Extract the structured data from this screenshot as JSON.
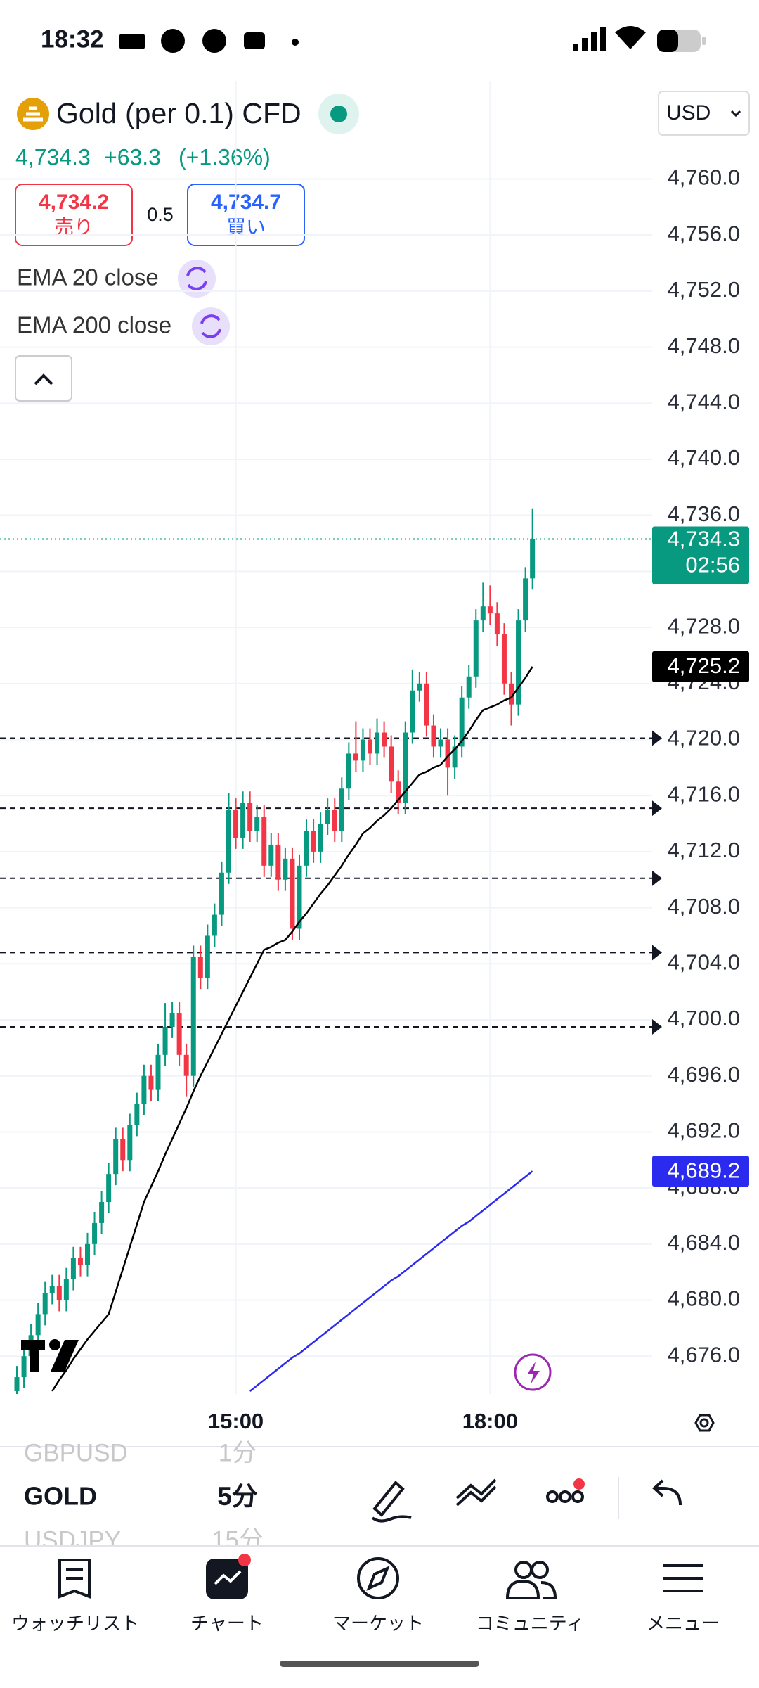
{
  "status_bar": {
    "time": "18:32"
  },
  "header": {
    "title": "Gold (per 0.1) CFD",
    "price": "4,734.3",
    "change": "+63.3",
    "change_pct": "(+1.36%)",
    "sell_price": "4,734.2",
    "sell_label": "売り",
    "spread": "0.5",
    "buy_price": "4,734.7",
    "buy_label": "買い",
    "currency": "USD"
  },
  "chart_data": {
    "type": "candlestick",
    "x": [
      "12:25",
      "12:30",
      "12:35",
      "12:40",
      "12:45",
      "12:50",
      "12:55",
      "13:00",
      "13:05",
      "13:10",
      "13:15",
      "13:20",
      "13:25",
      "13:30",
      "13:35",
      "13:40",
      "13:45",
      "13:50",
      "13:55",
      "14:00",
      "14:05",
      "14:10",
      "14:15",
      "14:20",
      "14:25",
      "14:30",
      "14:35",
      "14:40",
      "14:45",
      "14:50",
      "14:55",
      "15:00",
      "15:05",
      "15:10",
      "15:15",
      "15:20",
      "15:25",
      "15:30",
      "15:35",
      "15:40",
      "15:45",
      "15:50",
      "15:55",
      "16:00",
      "16:05",
      "16:10",
      "16:15",
      "16:20",
      "16:25",
      "16:30",
      "16:35",
      "16:40",
      "16:45",
      "16:50",
      "16:55",
      "17:00",
      "17:05",
      "17:10",
      "17:15",
      "17:20",
      "17:25",
      "17:30",
      "17:35",
      "17:40",
      "17:45",
      "17:50",
      "17:55",
      "18:00",
      "18:05",
      "18:10",
      "18:15",
      "18:20",
      "18:25",
      "18:30"
    ],
    "open": [
      4673.5,
      4674.5,
      4676.0,
      4677.5,
      4679.0,
      4680.5,
      4681.0,
      4680.0,
      4681.5,
      4683.0,
      4682.5,
      4684.0,
      4685.5,
      4687.0,
      4689.0,
      4691.5,
      4690.0,
      4692.5,
      4694.0,
      4696.0,
      4695.0,
      4697.5,
      4699.5,
      4700.5,
      4697.5,
      4696.0,
      4704.5,
      4703.0,
      4706.0,
      4707.5,
      4710.5,
      4715.0,
      4713.0,
      4715.5,
      4713.5,
      4714.5,
      4711.0,
      4712.5,
      4710.0,
      4711.5,
      4706.5,
      4711.0,
      4713.5,
      4712.0,
      4714.0,
      4715.0,
      4713.5,
      4716.5,
      4719.0,
      4718.5,
      4720.0,
      4719.0,
      4720.5,
      4719.5,
      4717.0,
      4715.5,
      4720.5,
      4723.5,
      4724.0,
      4721.0,
      4719.5,
      4720.0,
      4718.0,
      4719.5,
      4723.0,
      4724.5,
      4728.5,
      4729.5,
      4729.0,
      4727.5,
      4724.0,
      4722.5,
      4728.5,
      4731.5
    ],
    "high": [
      4675.3,
      4676.8,
      4678.3,
      4679.8,
      4681.3,
      4681.8,
      4681.8,
      4682.3,
      4683.8,
      4683.8,
      4684.8,
      4686.3,
      4687.8,
      4689.8,
      4692.3,
      4692.3,
      4693.3,
      4694.8,
      4696.8,
      4696.8,
      4698.3,
      4701.2,
      4701.3,
      4701.3,
      4698.3,
      4705.3,
      4705.3,
      4706.8,
      4708.3,
      4711.3,
      4716.2,
      4715.8,
      4716.3,
      4716.3,
      4715.3,
      4715.3,
      4713.3,
      4713.3,
      4712.3,
      4712.3,
      4711.8,
      4714.3,
      4714.3,
      4714.8,
      4715.8,
      4715.8,
      4717.3,
      4719.8,
      4721.3,
      4720.8,
      4720.8,
      4721.5,
      4721.3,
      4720.3,
      4717.8,
      4721.3,
      4725.0,
      4724.8,
      4724.8,
      4721.8,
      4720.8,
      4720.8,
      4720.3,
      4723.8,
      4725.3,
      4729.3,
      4731.2,
      4731.0,
      4729.8,
      4728.3,
      4724.8,
      4729.3,
      4732.3,
      4736.5
    ],
    "low": [
      4672.7,
      4673.7,
      4675.2,
      4676.7,
      4678.2,
      4679.7,
      4679.2,
      4679.2,
      4680.7,
      4681.7,
      4681.7,
      4683.2,
      4684.7,
      4686.2,
      4688.2,
      4689.2,
      4689.2,
      4691.7,
      4693.2,
      4694.2,
      4694.2,
      4696.7,
      4698.7,
      4696.7,
      4694.5,
      4695.2,
      4702.2,
      4702.2,
      4705.2,
      4706.7,
      4709.7,
      4712.2,
      4712.2,
      4712.7,
      4712.7,
      4710.2,
      4710.2,
      4709.2,
      4709.2,
      4705.7,
      4705.7,
      4710.2,
      4711.2,
      4711.2,
      4713.2,
      4712.7,
      4712.7,
      4715.7,
      4717.7,
      4717.7,
      4718.2,
      4718.2,
      4718.7,
      4716.2,
      4714.7,
      4714.7,
      4719.7,
      4722.7,
      4720.2,
      4718.7,
      4718.7,
      4716.0,
      4717.2,
      4718.7,
      4722.2,
      4723.7,
      4727.7,
      4728.2,
      4726.7,
      4723.2,
      4721.0,
      4721.7,
      4727.7,
      4730.7
    ],
    "close": [
      4674.5,
      4676.0,
      4677.5,
      4679.0,
      4680.5,
      4681.0,
      4680.0,
      4681.5,
      4683.0,
      4682.5,
      4684.0,
      4685.5,
      4687.0,
      4689.0,
      4691.5,
      4690.0,
      4692.5,
      4694.0,
      4696.0,
      4695.0,
      4697.5,
      4699.5,
      4700.5,
      4697.5,
      4696.0,
      4704.5,
      4703.0,
      4706.0,
      4707.5,
      4710.5,
      4715.0,
      4713.0,
      4715.5,
      4713.5,
      4714.5,
      4711.0,
      4712.5,
      4710.0,
      4711.5,
      4706.5,
      4711.0,
      4713.5,
      4712.0,
      4714.0,
      4715.0,
      4713.5,
      4716.5,
      4719.0,
      4718.5,
      4720.0,
      4719.0,
      4720.5,
      4719.5,
      4717.0,
      4715.5,
      4720.5,
      4723.5,
      4724.0,
      4721.0,
      4719.5,
      4720.0,
      4718.0,
      4719.5,
      4723.0,
      4724.5,
      4728.5,
      4729.5,
      4729.0,
      4727.5,
      4724.0,
      4722.5,
      4728.5,
      4731.5,
      4734.3
    ],
    "up_color": "#089981",
    "down_color": "#f23645",
    "series": [
      {
        "name": "EMA 20 close",
        "color": "#000000",
        "last_value_label": "4,725.2",
        "values": [
          null,
          null,
          null,
          null,
          null,
          4673.5,
          4674.3,
          4675.0,
          4675.8,
          4676.5,
          4677.2,
          4677.8,
          4678.4,
          4679.0,
          4680.6,
          4682.2,
          4683.8,
          4685.4,
          4687.0,
          4688.1,
          4689.2,
          4690.4,
          4691.5,
          4692.6,
          4693.7,
          4694.9,
          4696.0,
          4697.0,
          4698.0,
          4699.0,
          4700.0,
          4701.0,
          4702.0,
          4703.0,
          4704.0,
          4705.0,
          4705.2,
          4705.5,
          4705.7,
          4706.3,
          4707.0,
          4707.6,
          4708.3,
          4709.0,
          4709.6,
          4710.3,
          4711.0,
          4711.8,
          4712.5,
          4713.3,
          4713.7,
          4714.2,
          4714.6,
          4715.1,
          4715.7,
          4716.3,
          4716.9,
          4717.5,
          4717.7,
          4718.0,
          4718.2,
          4718.8,
          4719.3,
          4719.9,
          4720.6,
          4721.4,
          4722.1,
          4722.3,
          4722.5,
          4722.8,
          4723.0,
          4723.7,
          4724.4,
          4725.2
        ]
      },
      {
        "name": "EMA 200 close",
        "color": "#2b2bf0",
        "last_value_label": "4,689.2",
        "values": [
          null,
          null,
          null,
          null,
          null,
          null,
          null,
          null,
          null,
          null,
          null,
          null,
          null,
          null,
          null,
          null,
          null,
          null,
          null,
          null,
          null,
          null,
          null,
          null,
          null,
          null,
          null,
          null,
          null,
          null,
          null,
          null,
          null,
          4673.5,
          4673.9,
          4674.3,
          4674.7,
          4675.1,
          4675.5,
          4675.9,
          4676.2,
          4676.6,
          4677.0,
          4677.4,
          4677.8,
          4678.2,
          4678.6,
          4679.0,
          4679.4,
          4679.8,
          4680.2,
          4680.6,
          4681.0,
          4681.4,
          4681.7,
          4682.1,
          4682.5,
          4682.9,
          4683.3,
          4683.7,
          4684.1,
          4684.5,
          4684.9,
          4685.3,
          4685.6,
          4686.0,
          4686.4,
          4686.8,
          4687.2,
          4687.6,
          4688.0,
          4688.4,
          4688.8,
          4689.2
        ]
      }
    ],
    "ylim": [
      4673.3,
      4767.0
    ],
    "yticks": [
      {
        "value": 4676,
        "label": "4,676.0"
      },
      {
        "value": 4680,
        "label": "4,680.0"
      },
      {
        "value": 4684,
        "label": "4,684.0"
      },
      {
        "value": 4688,
        "label": "4,688.0"
      },
      {
        "value": 4692,
        "label": "4,692.0"
      },
      {
        "value": 4696,
        "label": "4,696.0"
      },
      {
        "value": 4700,
        "label": "4,700.0"
      },
      {
        "value": 4704,
        "label": "4,704.0"
      },
      {
        "value": 4708,
        "label": "4,708.0"
      },
      {
        "value": 4712,
        "label": "4,712.0"
      },
      {
        "value": 4716,
        "label": "4,716.0"
      },
      {
        "value": 4720,
        "label": "4,720.0"
      },
      {
        "value": 4724,
        "label": "4,724.0"
      },
      {
        "value": 4728,
        "label": "4,728.0"
      },
      {
        "value": 4732,
        "label": "4,732.0"
      },
      {
        "value": 4736,
        "label": "4,736.0"
      },
      {
        "value": 4740,
        "label": "4,740.0"
      },
      {
        "value": 4744,
        "label": "4,744.0"
      },
      {
        "value": 4748,
        "label": "4,748.0"
      },
      {
        "value": 4752,
        "label": "4,752.0"
      },
      {
        "value": 4756,
        "label": "4,756.0"
      },
      {
        "value": 4760,
        "label": "4,760.0"
      }
    ],
    "xticks": [
      "15:00",
      "18:00"
    ],
    "grid": true,
    "levels": [
      4720.1,
      4715.1,
      4710.1,
      4704.8,
      4699.5
    ],
    "last_price": {
      "value": 4734.3,
      "label": "4,734.3",
      "countdown": "02:56"
    }
  },
  "picker": {
    "symbols": [
      "GBPUSD",
      "GOLD",
      "USDJPY"
    ],
    "intervals": [
      "1分",
      "5分",
      "15分"
    ]
  },
  "nav": [
    "ウォッチリスト",
    "チャート",
    "マーケット",
    "コミュニティ",
    "メニュー"
  ]
}
